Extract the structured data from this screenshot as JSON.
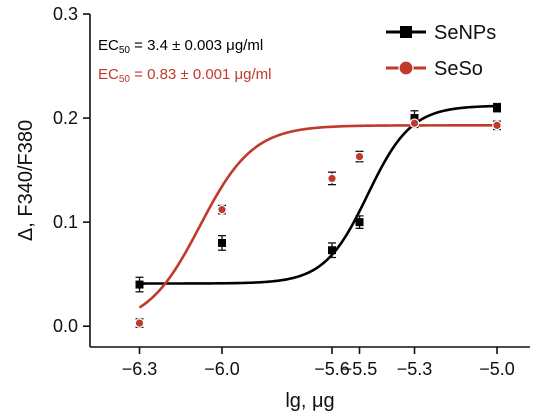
{
  "chart_data": {
    "type": "scatter",
    "xlabel": "lg, μg",
    "ylabel": "Δ, F340/F380",
    "xlim": [
      -6.48,
      -4.88
    ],
    "ylim": [
      -0.02,
      0.3
    ],
    "x_ticks": [
      {
        "value": -6.3,
        "label": "−6.3"
      },
      {
        "value": -6.0,
        "label": "−6.0"
      },
      {
        "value": -5.6,
        "label": "−5.6"
      },
      {
        "value": -5.5,
        "label": "−5.5"
      },
      {
        "value": -5.3,
        "label": "−5.3"
      },
      {
        "value": -5.0,
        "label": "−5.0"
      }
    ],
    "y_ticks": [
      {
        "value": 0.0,
        "label": "0.0"
      },
      {
        "value": 0.1,
        "label": "0.1"
      },
      {
        "value": 0.2,
        "label": "0.2"
      },
      {
        "value": 0.3,
        "label": "0.3"
      }
    ],
    "legend_position": "top-right",
    "series": [
      {
        "name": "SeNPs",
        "color": "#000000",
        "marker": "square",
        "x": [
          -6.3,
          -6.0,
          -5.6,
          -5.5,
          -5.3,
          -5.0
        ],
        "y": [
          0.04,
          0.08,
          0.073,
          0.1,
          0.2,
          0.21
        ],
        "err": [
          0.007,
          0.007,
          0.007,
          0.006,
          0.007,
          0.004
        ],
        "fit": {
          "bottom": 0.041,
          "top": 0.212,
          "logEC50": -5.47,
          "hill": 5.5
        },
        "annotation": {
          "prefix": "EC",
          "subscript": "50",
          "suffix": " = 3.4 ± 0.003 μg/ml"
        }
      },
      {
        "name": "SeSo",
        "color": "#c0392b",
        "marker": "circle",
        "x": [
          -6.3,
          -6.0,
          -5.6,
          -5.5,
          -5.3,
          -5.0
        ],
        "y": [
          0.003,
          0.112,
          0.142,
          0.163,
          0.195,
          0.193
        ],
        "err": [
          0.004,
          0.004,
          0.006,
          0.005,
          0.004,
          0.004
        ],
        "fit": {
          "bottom": 0.0,
          "top": 0.193,
          "logEC50": -6.08,
          "hill": 4.5
        },
        "annotation": {
          "prefix": "EC",
          "subscript": "50",
          "suffix": " = 0.83 ± 0.001 μg/ml"
        }
      }
    ]
  }
}
